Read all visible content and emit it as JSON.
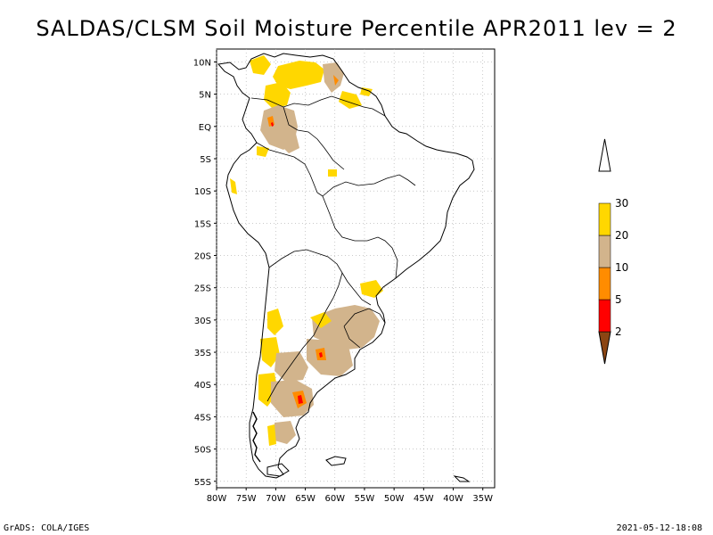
{
  "title": "SALDAS/CLSM Soil Moisture Percentile APR2011 lev = 2",
  "footer": {
    "left": "GrADS: COLA/IGES",
    "right": "2021-05-12-18:08"
  },
  "map": {
    "lat_labels": [
      "10N",
      "5N",
      "EQ",
      "5S",
      "10S",
      "15S",
      "20S",
      "25S",
      "30S",
      "35S",
      "40S",
      "45S",
      "50S",
      "55S"
    ],
    "lon_labels": [
      "80W",
      "75W",
      "70W",
      "65W",
      "60W",
      "55W",
      "50W",
      "45W",
      "40W",
      "35W"
    ],
    "lat_range": [
      -56,
      12
    ],
    "lon_range": [
      -80,
      -33
    ]
  },
  "legend": {
    "bins": [
      {
        "label": "2",
        "color": "#8b4513"
      },
      {
        "label": "5",
        "color": "#ff0000"
      },
      {
        "label": "10",
        "color": "#ff8c00"
      },
      {
        "label": "20",
        "color": "#d2b48c"
      },
      {
        "label": "30",
        "color": "#ffd700"
      }
    ],
    "top_color": "#ffffff"
  },
  "colors": {
    "frame": "#000000",
    "grid": "#aaaaaa",
    "coast": "#000000"
  }
}
